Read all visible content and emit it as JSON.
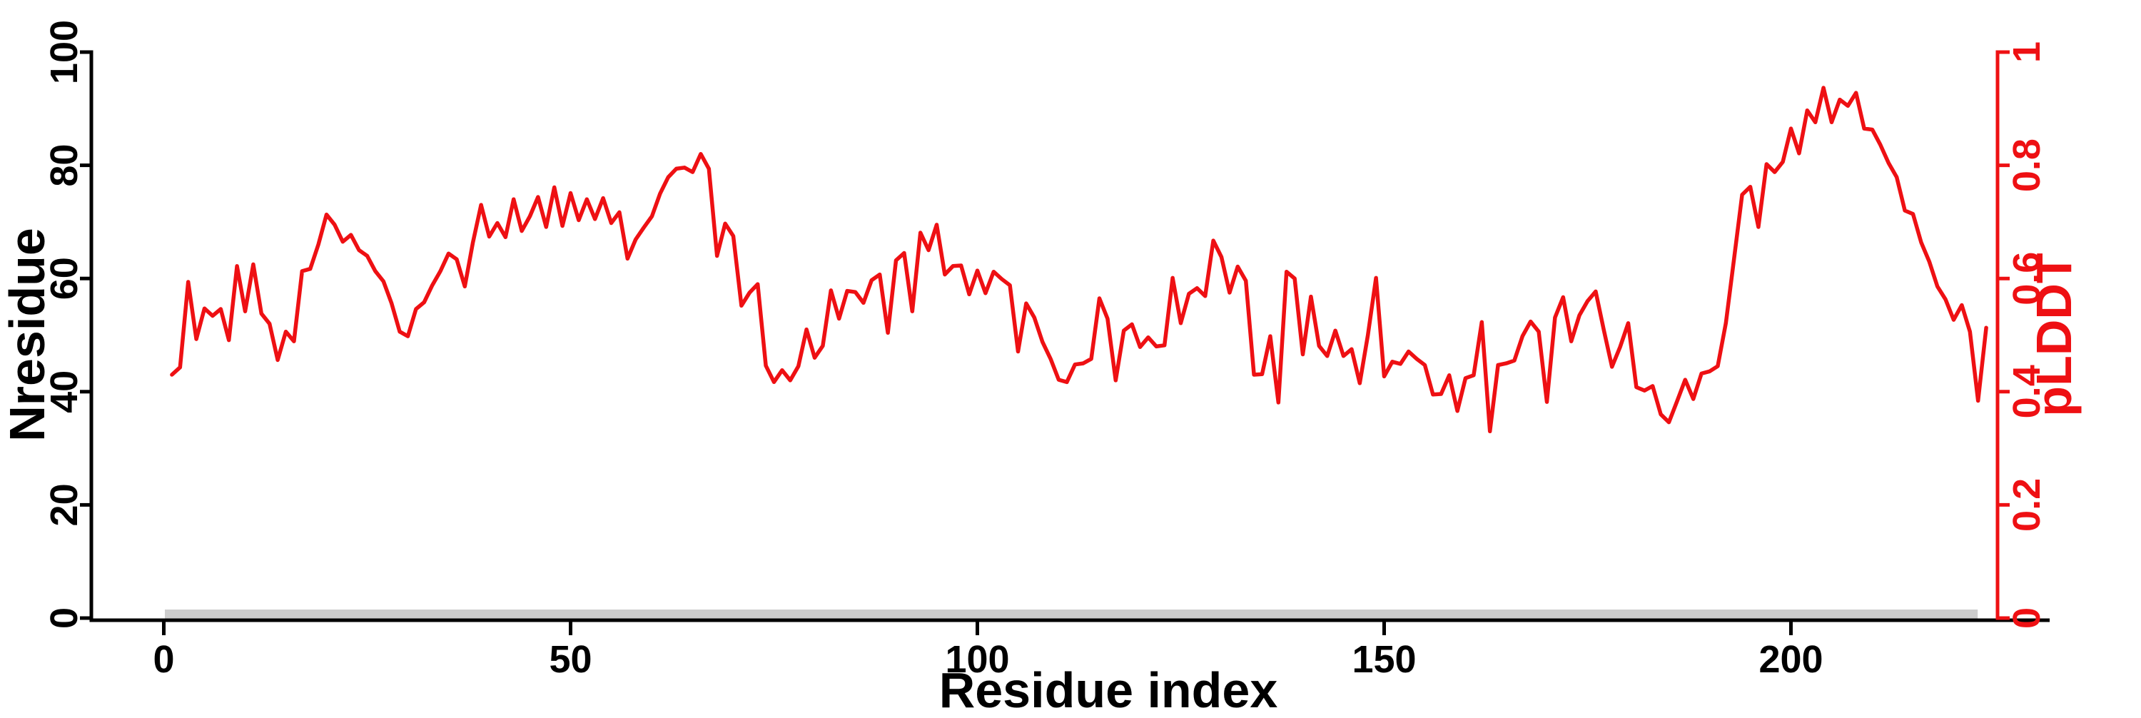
{
  "figure": {
    "background": "#ffffff",
    "accent_red": "#ee1013",
    "axis_black": "#000000",
    "bar_gray": "#cdcdcd"
  },
  "chart_data": {
    "type": "line",
    "title": "",
    "xlabel": "Residue index",
    "ylabel_left": "Nresidue",
    "ylabel_right": "pLDDT",
    "x_ticks": [
      0,
      50,
      100,
      150,
      200
    ],
    "y_left_ticks": [
      0,
      20,
      40,
      60,
      80,
      100
    ],
    "y_right_ticks": [
      "0",
      "0.2",
      "0.4",
      "0.6",
      "0.8",
      "1"
    ],
    "xlim": [
      0,
      225
    ],
    "ylim_left": [
      0,
      100
    ],
    "ylim_right": [
      0,
      1
    ],
    "grid": false,
    "legend": "none",
    "line_color": "#ee1013",
    "left_axis_color": "#000000",
    "right_axis_color": "#ee1013",
    "coverage_bar": {
      "x_start": 0,
      "x_end": 223,
      "nresidue_value": 2,
      "color": "#cdcdcd"
    },
    "series": [
      {
        "name": "pLDDT",
        "x_start": 1,
        "x_step": 1,
        "values": [
          0.43,
          0.443,
          0.594,
          0.493,
          0.547,
          0.534,
          0.546,
          0.491,
          0.622,
          0.542,
          0.625,
          0.538,
          0.52,
          0.456,
          0.506,
          0.489,
          0.613,
          0.617,
          0.66,
          0.713,
          0.695,
          0.665,
          0.677,
          0.65,
          0.64,
          0.613,
          0.595,
          0.556,
          0.506,
          0.498,
          0.546,
          0.558,
          0.588,
          0.613,
          0.644,
          0.634,
          0.586,
          0.664,
          0.73,
          0.674,
          0.698,
          0.673,
          0.74,
          0.684,
          0.71,
          0.744,
          0.691,
          0.761,
          0.693,
          0.751,
          0.703,
          0.74,
          0.705,
          0.742,
          0.698,
          0.717,
          0.635,
          0.669,
          0.69,
          0.71,
          0.75,
          0.779,
          0.794,
          0.796,
          0.788,
          0.82,
          0.794,
          0.64,
          0.697,
          0.675,
          0.552,
          0.575,
          0.59,
          0.446,
          0.417,
          0.438,
          0.42,
          0.445,
          0.51,
          0.46,
          0.481,
          0.579,
          0.529,
          0.578,
          0.576,
          0.557,
          0.597,
          0.607,
          0.504,
          0.632,
          0.645,
          0.542,
          0.681,
          0.65,
          0.695,
          0.607,
          0.622,
          0.623,
          0.572,
          0.614,
          0.574,
          0.612,
          0.599,
          0.588,
          0.471,
          0.556,
          0.531,
          0.488,
          0.458,
          0.421,
          0.417,
          0.448,
          0.45,
          0.458,
          0.565,
          0.529,
          0.42,
          0.508,
          0.519,
          0.479,
          0.496,
          0.48,
          0.482,
          0.601,
          0.521,
          0.573,
          0.583,
          0.569,
          0.667,
          0.638,
          0.575,
          0.621,
          0.596,
          0.43,
          0.431,
          0.498,
          0.381,
          0.612,
          0.6,
          0.466,
          0.568,
          0.481,
          0.463,
          0.508,
          0.463,
          0.475,
          0.415,
          0.5,
          0.601,
          0.427,
          0.453,
          0.449,
          0.471,
          0.458,
          0.447,
          0.395,
          0.396,
          0.429,
          0.366,
          0.424,
          0.429,
          0.523,
          0.33,
          0.447,
          0.45,
          0.455,
          0.498,
          0.524,
          0.506,
          0.382,
          0.531,
          0.567,
          0.489,
          0.535,
          0.56,
          0.577,
          0.509,
          0.444,
          0.479,
          0.521,
          0.408,
          0.402,
          0.41,
          0.36,
          0.346,
          0.383,
          0.421,
          0.387,
          0.432,
          0.436,
          0.445,
          0.521,
          0.634,
          0.748,
          0.762,
          0.691,
          0.802,
          0.788,
          0.806,
          0.865,
          0.821,
          0.897,
          0.876,
          0.937,
          0.876,
          0.916,
          0.905,
          0.928,
          0.865,
          0.863,
          0.836,
          0.804,
          0.779,
          0.72,
          0.714,
          0.664,
          0.63,
          0.586,
          0.563,
          0.527,
          0.553,
          0.506,
          0.384,
          0.513
        ]
      }
    ]
  }
}
